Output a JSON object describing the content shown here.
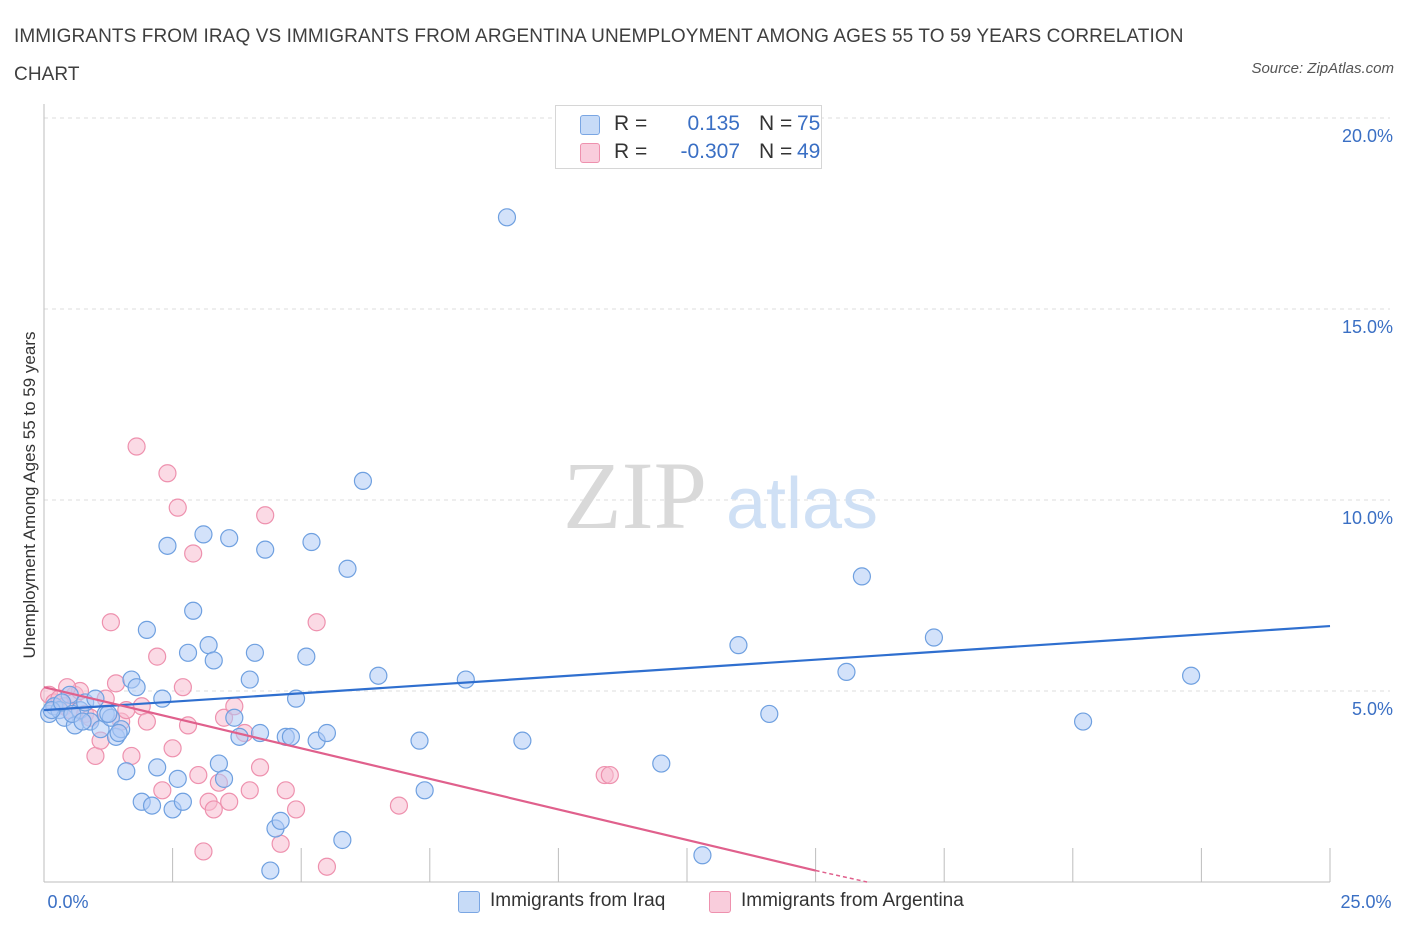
{
  "title": "IMMIGRANTS FROM IRAQ VS IMMIGRANTS FROM ARGENTINA UNEMPLOYMENT AMONG AGES 55 TO 59 YEARS CORRELATION CHART",
  "source": "Source: ZipAtlas.com",
  "watermark": {
    "zip": "ZIP",
    "atlas": "atlas"
  },
  "legend": {
    "r_label": "R =",
    "n_label": "N =",
    "rows": [
      {
        "r": "0.135",
        "n": "75",
        "color": "#aecbf5"
      },
      {
        "r": "-0.307",
        "n": "49",
        "color": "#f7bcd0"
      }
    ]
  },
  "chart_data": {
    "type": "scatter",
    "title": "IMMIGRANTS FROM IRAQ VS IMMIGRANTS FROM ARGENTINA UNEMPLOYMENT AMONG AGES 55 TO 59 YEARS CORRELATION CHART",
    "xlabel": "",
    "ylabel": "Unemployment Among Ages 55 to 59 years",
    "xlim": [
      0,
      25
    ],
    "ylim": [
      0,
      20
    ],
    "x_tick_labels": [
      "0.0%",
      "25.0%"
    ],
    "y_ticks": [
      5,
      10,
      15,
      20
    ],
    "y_tick_labels": [
      "5.0%",
      "10.0%",
      "15.0%",
      "20.0%"
    ],
    "grid": "horizontal dashed",
    "legend_position": "top-center",
    "series": [
      {
        "name": "Immigrants from Iraq",
        "color": "#6fa0e0",
        "fill": "#aecbf5",
        "trend": {
          "x": [
            0,
            25
          ],
          "y": [
            4.5,
            6.7
          ],
          "color": "#2f6fcf"
        },
        "points": [
          [
            0.1,
            4.4
          ],
          [
            0.2,
            4.6
          ],
          [
            0.3,
            4.5
          ],
          [
            0.4,
            4.3
          ],
          [
            0.5,
            4.9
          ],
          [
            0.6,
            4.1
          ],
          [
            0.7,
            4.5
          ],
          [
            0.8,
            4.7
          ],
          [
            0.9,
            4.2
          ],
          [
            1.0,
            4.8
          ],
          [
            1.1,
            4.0
          ],
          [
            1.2,
            4.4
          ],
          [
            1.3,
            4.3
          ],
          [
            1.4,
            3.8
          ],
          [
            1.5,
            4.0
          ],
          [
            1.6,
            2.9
          ],
          [
            1.7,
            5.3
          ],
          [
            1.8,
            5.1
          ],
          [
            1.9,
            2.1
          ],
          [
            2.0,
            6.6
          ],
          [
            2.1,
            2.0
          ],
          [
            2.2,
            3.0
          ],
          [
            2.3,
            4.8
          ],
          [
            2.4,
            8.8
          ],
          [
            2.5,
            1.9
          ],
          [
            2.6,
            2.7
          ],
          [
            2.7,
            2.1
          ],
          [
            2.8,
            6.0
          ],
          [
            2.9,
            7.1
          ],
          [
            3.1,
            9.1
          ],
          [
            3.2,
            6.2
          ],
          [
            3.3,
            5.8
          ],
          [
            3.4,
            3.1
          ],
          [
            3.5,
            2.7
          ],
          [
            3.6,
            9.0
          ],
          [
            3.7,
            4.3
          ],
          [
            3.8,
            3.8
          ],
          [
            4.0,
            5.3
          ],
          [
            4.1,
            6.0
          ],
          [
            4.2,
            3.9
          ],
          [
            4.3,
            8.7
          ],
          [
            4.4,
            0.3
          ],
          [
            4.5,
            1.4
          ],
          [
            4.6,
            1.6
          ],
          [
            4.7,
            3.8
          ],
          [
            4.8,
            3.8
          ],
          [
            4.9,
            4.8
          ],
          [
            5.1,
            5.9
          ],
          [
            5.2,
            8.9
          ],
          [
            5.3,
            3.7
          ],
          [
            5.5,
            3.9
          ],
          [
            5.8,
            1.1
          ],
          [
            5.9,
            8.2
          ],
          [
            6.2,
            10.5
          ],
          [
            6.5,
            5.4
          ],
          [
            7.3,
            3.7
          ],
          [
            7.4,
            2.4
          ],
          [
            8.2,
            5.3
          ],
          [
            9.0,
            17.4
          ],
          [
            9.3,
            3.7
          ],
          [
            12.0,
            3.1
          ],
          [
            12.8,
            0.7
          ],
          [
            13.5,
            6.2
          ],
          [
            14.1,
            4.4
          ],
          [
            15.6,
            5.5
          ],
          [
            15.9,
            8.0
          ],
          [
            17.3,
            6.4
          ],
          [
            20.2,
            4.2
          ],
          [
            22.3,
            5.4
          ],
          [
            0.15,
            4.5
          ],
          [
            0.35,
            4.7
          ],
          [
            0.55,
            4.4
          ],
          [
            0.75,
            4.2
          ],
          [
            1.25,
            4.4
          ],
          [
            1.45,
            3.9
          ]
        ]
      },
      {
        "name": "Immigrants from Argentina",
        "color": "#ee91ae",
        "fill": "#f7bcd0",
        "trend": {
          "x": [
            0,
            15
          ],
          "y": [
            5.1,
            0.3
          ],
          "dashed_to": [
            16.0,
            0.0
          ],
          "color": "#e0608c"
        },
        "points": [
          [
            0.1,
            4.9
          ],
          [
            0.2,
            4.7
          ],
          [
            0.3,
            4.8
          ],
          [
            0.4,
            4.6
          ],
          [
            0.5,
            4.5
          ],
          [
            0.6,
            4.9
          ],
          [
            0.7,
            5.0
          ],
          [
            0.8,
            4.4
          ],
          [
            0.9,
            4.3
          ],
          [
            1.0,
            3.3
          ],
          [
            1.1,
            3.7
          ],
          [
            1.2,
            4.8
          ],
          [
            1.3,
            6.8
          ],
          [
            1.4,
            5.2
          ],
          [
            1.5,
            4.2
          ],
          [
            1.6,
            4.5
          ],
          [
            1.7,
            3.3
          ],
          [
            1.8,
            11.4
          ],
          [
            1.9,
            4.6
          ],
          [
            2.0,
            4.2
          ],
          [
            2.2,
            5.9
          ],
          [
            2.3,
            2.4
          ],
          [
            2.4,
            10.7
          ],
          [
            2.5,
            3.5
          ],
          [
            2.6,
            9.8
          ],
          [
            2.7,
            5.1
          ],
          [
            2.8,
            4.1
          ],
          [
            2.9,
            8.6
          ],
          [
            3.0,
            2.8
          ],
          [
            3.1,
            0.8
          ],
          [
            3.2,
            2.1
          ],
          [
            3.3,
            1.9
          ],
          [
            3.4,
            2.6
          ],
          [
            3.5,
            4.3
          ],
          [
            3.6,
            2.1
          ],
          [
            3.7,
            4.6
          ],
          [
            3.9,
            3.9
          ],
          [
            4.0,
            2.4
          ],
          [
            4.2,
            3.0
          ],
          [
            4.3,
            9.6
          ],
          [
            4.6,
            1.0
          ],
          [
            4.7,
            2.4
          ],
          [
            4.9,
            1.9
          ],
          [
            5.3,
            6.8
          ],
          [
            5.5,
            0.4
          ],
          [
            6.9,
            2.0
          ],
          [
            10.9,
            2.8
          ],
          [
            11.0,
            2.8
          ],
          [
            0.45,
            5.1
          ]
        ]
      }
    ]
  },
  "ui": {
    "ylabel": "Unemployment Among Ages 55 to 59 years",
    "x_min_label": "0.0%",
    "x_max_label": "25.0%",
    "series_labels": [
      "Immigrants from Iraq",
      "Immigrants from Argentina"
    ]
  }
}
